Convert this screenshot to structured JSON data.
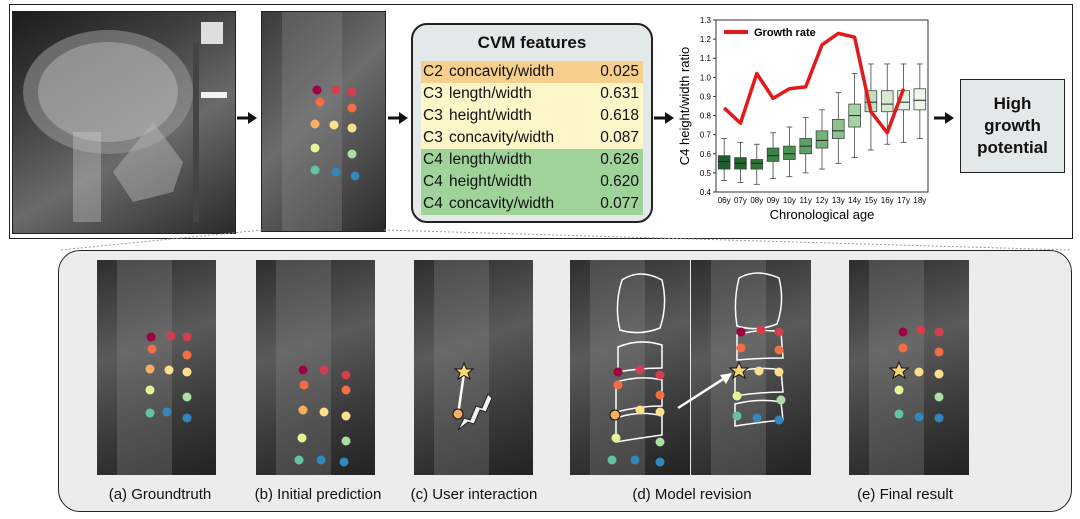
{
  "cvm": {
    "title": "CVM features",
    "rows": [
      {
        "v": "C2",
        "name": "concavity/width",
        "value": "0.025",
        "color": "#f7cf8d"
      },
      {
        "v": "C3",
        "name": "length/width",
        "value": "0.631",
        "color": "#fdf6c9"
      },
      {
        "v": "C3",
        "name": "height/width",
        "value": "0.618",
        "color": "#fdf6c9"
      },
      {
        "v": "C3",
        "name": "concavity/width",
        "value": "0.087",
        "color": "#fdf6c9"
      },
      {
        "v": "C4",
        "name": "length/width",
        "value": "0.626",
        "color": "#9fd39a"
      },
      {
        "v": "C4",
        "name": "height/width",
        "value": "0.620",
        "color": "#9fd39a"
      },
      {
        "v": "C4",
        "name": "concavity/width",
        "value": "0.077",
        "color": "#9fd39a"
      }
    ]
  },
  "result": {
    "line1": "High",
    "line2": "growth",
    "line3": "potential"
  },
  "captions": {
    "a": "(a) Groundtruth",
    "b": "(b) Initial prediction",
    "c": "(c) User interaction",
    "d": "(d) Model revision",
    "e": "(e) Final result"
  },
  "chart_data": {
    "type": "box",
    "ylabel": "C4 height/width ratio",
    "xlabel": "Chronological age",
    "legend": "Growth rate",
    "ylim": [
      0.4,
      1.3
    ],
    "yticks": [
      "0.4",
      "0.5",
      "0.6",
      "0.7",
      "0.8",
      "0.9",
      "1.0",
      "1.1",
      "1.2",
      "1.3"
    ],
    "categories": [
      "06y",
      "07y",
      "08y",
      "09y",
      "10y",
      "11y",
      "12y",
      "13y",
      "14y",
      "15y",
      "16y",
      "17y",
      "18y"
    ],
    "boxes": [
      {
        "min": 0.46,
        "q1": 0.52,
        "med": 0.56,
        "q3": 0.59,
        "max": 0.68
      },
      {
        "min": 0.45,
        "q1": 0.52,
        "med": 0.55,
        "q3": 0.58,
        "max": 0.66
      },
      {
        "min": 0.44,
        "q1": 0.52,
        "med": 0.55,
        "q3": 0.57,
        "max": 0.65
      },
      {
        "min": 0.47,
        "q1": 0.56,
        "med": 0.59,
        "q3": 0.63,
        "max": 0.71
      },
      {
        "min": 0.48,
        "q1": 0.57,
        "med": 0.6,
        "q3": 0.64,
        "max": 0.74
      },
      {
        "min": 0.5,
        "q1": 0.6,
        "med": 0.64,
        "q3": 0.68,
        "max": 0.79
      },
      {
        "min": 0.52,
        "q1": 0.63,
        "med": 0.67,
        "q3": 0.72,
        "max": 0.83
      },
      {
        "min": 0.55,
        "q1": 0.68,
        "med": 0.72,
        "q3": 0.78,
        "max": 0.92
      },
      {
        "min": 0.58,
        "q1": 0.74,
        "med": 0.8,
        "q3": 0.86,
        "max": 1.02
      },
      {
        "min": 0.62,
        "q1": 0.82,
        "med": 0.87,
        "q3": 0.93,
        "max": 1.07
      },
      {
        "min": 0.65,
        "q1": 0.82,
        "med": 0.86,
        "q3": 0.93,
        "max": 1.07
      },
      {
        "min": 0.66,
        "q1": 0.83,
        "med": 0.87,
        "q3": 0.93,
        "max": 1.07
      },
      {
        "min": 0.68,
        "q1": 0.83,
        "med": 0.88,
        "q3": 0.94,
        "max": 1.07
      }
    ],
    "box_colors": [
      "#1f5f2f",
      "#23652f",
      "#2d7436",
      "#3b8445",
      "#4a9453",
      "#5da264",
      "#73b277",
      "#8cc38d",
      "#a6d3a3",
      "#bfe0bb",
      "#d6ebd2",
      "#e6f3e3",
      "#f0f8ee"
    ],
    "growth_rate": [
      0.84,
      0.76,
      1.02,
      0.89,
      0.94,
      0.95,
      1.17,
      1.23,
      1.21,
      0.82,
      0.71,
      0.94,
      null
    ]
  }
}
